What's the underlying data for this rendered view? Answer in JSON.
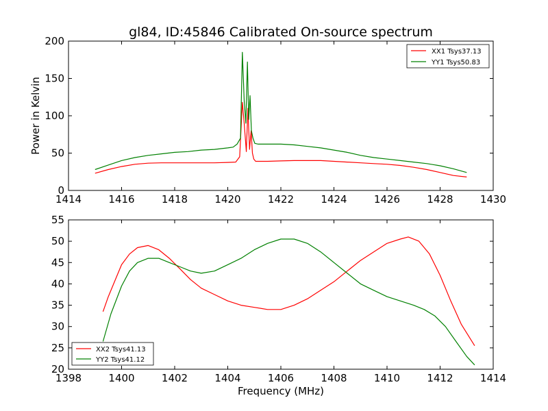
{
  "title": "gl84, ID:45846 Calibrated On-source spectrum",
  "colors": {
    "red": "#ff0000",
    "green": "#008000"
  },
  "chart_data": [
    {
      "type": "line",
      "ylabel": "Power in Kelvin",
      "xlabel": "",
      "xlim": [
        1414,
        1430
      ],
      "ylim": [
        0,
        200
      ],
      "xticks": [
        "1414",
        "1416",
        "1418",
        "1420",
        "1422",
        "1424",
        "1426",
        "1428",
        "1430"
      ],
      "yticks": [
        "0",
        "50",
        "100",
        "150",
        "200"
      ],
      "grid": false,
      "legend_position": "top-right",
      "series": [
        {
          "name": "XX1 Tsys37.13",
          "color": "#ff0000",
          "x": [
            1415,
            1415.5,
            1416,
            1416.5,
            1417,
            1417.5,
            1418,
            1418.5,
            1419,
            1419.5,
            1420,
            1420.3,
            1420.45,
            1420.55,
            1420.62,
            1420.7,
            1420.76,
            1420.82,
            1420.88,
            1420.93,
            1420.98,
            1421.05,
            1421.2,
            1421.5,
            1422,
            1422.5,
            1423,
            1423.5,
            1424,
            1424.5,
            1425,
            1425.5,
            1426,
            1426.5,
            1427,
            1427.5,
            1428,
            1428.5,
            1429
          ],
          "y": [
            23,
            28,
            32,
            35,
            36.5,
            37,
            37,
            37,
            37,
            37,
            37.5,
            38,
            45,
            118,
            90,
            52,
            110,
            55,
            80,
            50,
            42,
            39,
            39,
            39,
            39.5,
            40,
            40,
            40,
            39,
            38,
            37,
            36,
            35,
            33.5,
            31,
            28,
            24,
            20,
            18
          ]
        },
        {
          "name": "YY1 Tsys50.83",
          "color": "#008000",
          "x": [
            1415,
            1415.5,
            1416,
            1416.5,
            1417,
            1417.5,
            1418,
            1418.5,
            1419,
            1419.5,
            1420,
            1420.2,
            1420.35,
            1420.48,
            1420.55,
            1420.62,
            1420.68,
            1420.74,
            1420.79,
            1420.84,
            1420.89,
            1420.95,
            1421.02,
            1421.15,
            1421.5,
            1422,
            1422.5,
            1423,
            1423.5,
            1424,
            1424.5,
            1425,
            1425.5,
            1426,
            1426.5,
            1427,
            1427.5,
            1428,
            1428.5,
            1429
          ],
          "y": [
            28,
            34,
            40,
            44,
            47,
            49,
            51,
            52,
            54,
            55,
            57,
            58,
            62,
            70,
            185,
            120,
            90,
            172,
            95,
            127,
            80,
            70,
            63,
            62,
            62,
            62,
            61,
            59,
            57,
            54,
            51,
            47,
            44,
            42,
            40,
            38,
            36,
            33,
            29,
            24
          ]
        }
      ]
    },
    {
      "type": "line",
      "ylabel": "",
      "xlabel": "Frequency (MHz)",
      "xlim": [
        1398,
        1414
      ],
      "ylim": [
        20,
        55
      ],
      "xticks": [
        "1398",
        "1400",
        "1402",
        "1404",
        "1406",
        "1408",
        "1410",
        "1412",
        "1414"
      ],
      "yticks": [
        "20",
        "25",
        "30",
        "35",
        "40",
        "45",
        "50",
        "55"
      ],
      "grid": false,
      "legend_position": "bottom-left",
      "series": [
        {
          "name": "XX2 Tsys41.13",
          "color": "#ff0000",
          "x": [
            1399.3,
            1399.5,
            1399.8,
            1400,
            1400.3,
            1400.6,
            1401,
            1401.4,
            1401.8,
            1402.2,
            1402.6,
            1403,
            1403.5,
            1404,
            1404.5,
            1405,
            1405.5,
            1406,
            1406.5,
            1407,
            1407.5,
            1408,
            1408.5,
            1409,
            1409.5,
            1410,
            1410.5,
            1410.8,
            1411.2,
            1411.6,
            1412,
            1412.4,
            1412.8,
            1413.3
          ],
          "y": [
            33.5,
            37,
            41.5,
            44.5,
            47,
            48.5,
            49,
            48,
            46,
            43.5,
            41,
            39,
            37.5,
            36,
            35,
            34.5,
            34,
            34,
            35,
            36.5,
            38.5,
            40.5,
            43,
            45.5,
            47.5,
            49.5,
            50.5,
            51,
            50,
            47,
            42,
            36,
            30.5,
            25.5
          ]
        },
        {
          "name": "YY2 Tsys41.12",
          "color": "#008000",
          "x": [
            1399.3,
            1399.6,
            1400,
            1400.3,
            1400.6,
            1401,
            1401.4,
            1401.8,
            1402.2,
            1402.6,
            1403,
            1403.5,
            1404,
            1404.5,
            1405,
            1405.5,
            1406,
            1406.5,
            1407,
            1407.5,
            1408,
            1408.5,
            1409,
            1409.5,
            1410,
            1410.5,
            1411,
            1411.4,
            1411.8,
            1412.2,
            1412.6,
            1413,
            1413.3
          ],
          "y": [
            26.5,
            33,
            39.5,
            43,
            45,
            46,
            46,
            45,
            44,
            43,
            42.5,
            43,
            44.5,
            46,
            48,
            49.5,
            50.5,
            50.5,
            49.5,
            47.5,
            45,
            42.5,
            40,
            38.5,
            37,
            36,
            35,
            34,
            32.5,
            30,
            26.5,
            23,
            21
          ]
        }
      ]
    }
  ]
}
